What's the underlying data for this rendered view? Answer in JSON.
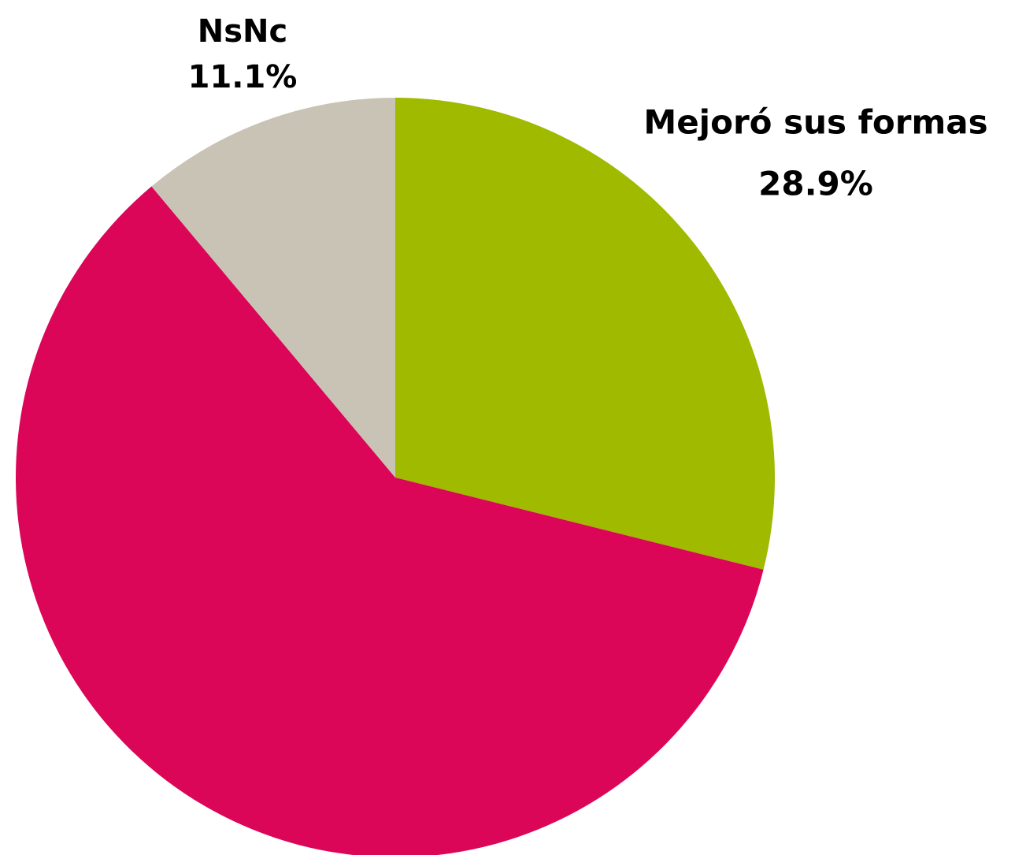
{
  "chart_data": {
    "type": "pie",
    "categories": [
      "Mejoró sus formas",
      null,
      "NsNc"
    ],
    "values": [
      28.9,
      60,
      11.1
    ],
    "value_labels": [
      "28.9%",
      null,
      "11.1%"
    ],
    "colors": [
      "#a0ba00",
      "#db0657",
      "#c9c3b6"
    ]
  }
}
